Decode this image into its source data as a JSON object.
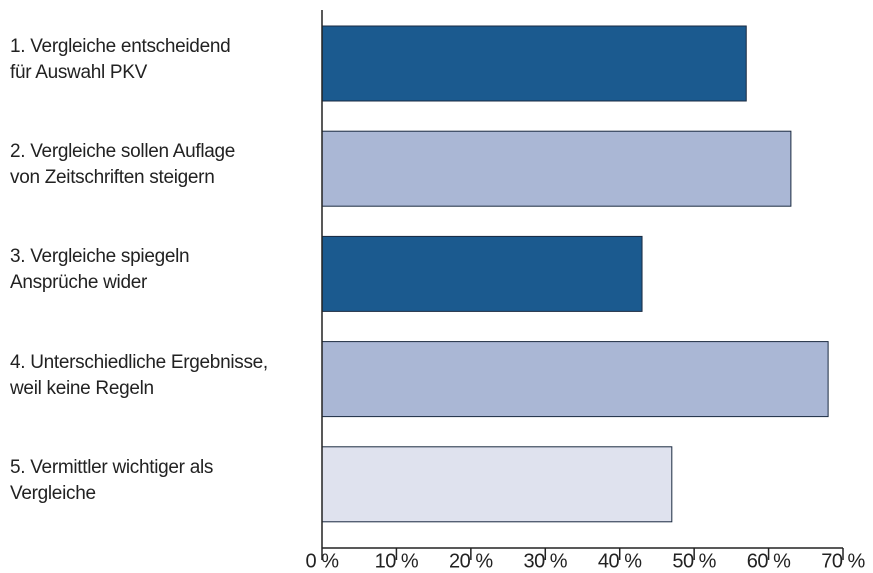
{
  "chart_data": {
    "type": "barh",
    "categories": [
      "1. Vergleiche entscheidend\nfür Auswahl PKV",
      "2. Vergleiche sollen Auflage\nvon Zeitschriften steigern",
      "3. Vergleiche spiegeln\nAnsprüche wider",
      "4. Unterschiedliche Ergebnisse,\nweil keine Regeln",
      "5. Vermittler wichtiger als\nVergleiche"
    ],
    "values": [
      57,
      63,
      43,
      68,
      47
    ],
    "colors": [
      "#1b5a8f",
      "#aab7d5",
      "#1b5a8f",
      "#aab7d5",
      "#dfe2ee"
    ],
    "xlim": [
      0,
      70
    ],
    "xticks": [
      {
        "value": 0,
        "label": "0 %"
      },
      {
        "value": 10,
        "label": "10 %"
      },
      {
        "value": 20,
        "label": "20 %"
      },
      {
        "value": 30,
        "label": "30 %"
      },
      {
        "value": 40,
        "label": "40 %"
      },
      {
        "value": 50,
        "label": "50 %"
      },
      {
        "value": 60,
        "label": "60 %"
      },
      {
        "value": 70,
        "label": "70 %"
      }
    ]
  }
}
